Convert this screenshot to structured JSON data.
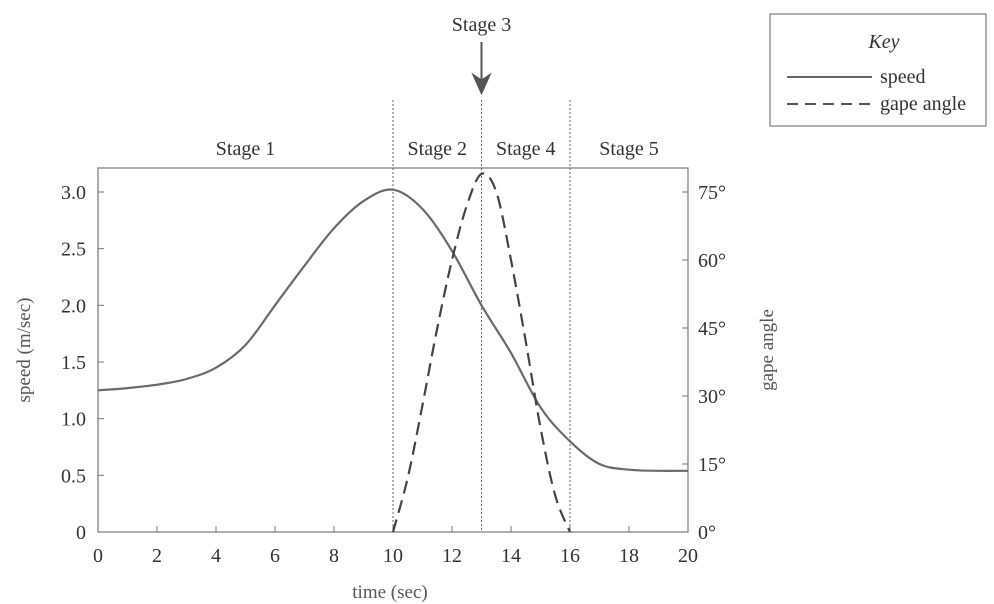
{
  "chart_data": {
    "type": "line",
    "xlabel": "time (sec)",
    "ylabel": "speed (m/sec)",
    "y2label": "gape angle",
    "xlim": [
      0,
      20
    ],
    "ylim": [
      0,
      3.0
    ],
    "y2lim": [
      0,
      75
    ],
    "x_ticks": [
      "0",
      "2",
      "4",
      "6",
      "8",
      "10",
      "12",
      "14",
      "16",
      "18",
      "20"
    ],
    "y_ticks": [
      "0",
      "0.5",
      "1.0",
      "1.5",
      "2.0",
      "2.5",
      "3.0"
    ],
    "y2_ticks": [
      "0°",
      "15°",
      "30°",
      "45°",
      "60°",
      "75°"
    ],
    "x_tick_values": [
      0,
      2,
      4,
      6,
      8,
      10,
      12,
      14,
      16,
      18,
      20
    ],
    "y_tick_values": [
      0,
      0.5,
      1.0,
      1.5,
      2.0,
      2.5,
      3.0
    ],
    "y2_tick_values": [
      0,
      15,
      30,
      45,
      60,
      75
    ],
    "series": [
      {
        "name": "speed",
        "axis": "left",
        "style": "solid",
        "x": [
          0,
          1,
          2,
          3,
          4,
          5,
          6,
          7,
          8,
          9,
          10,
          11,
          12,
          13,
          14,
          15,
          16,
          17,
          18,
          19,
          20
        ],
        "y": [
          1.25,
          1.27,
          1.3,
          1.35,
          1.45,
          1.65,
          2.0,
          2.35,
          2.68,
          2.92,
          3.02,
          2.85,
          2.48,
          2.0,
          1.58,
          1.1,
          0.8,
          0.6,
          0.55,
          0.54,
          0.54
        ]
      },
      {
        "name": "gape angle",
        "axis": "right",
        "style": "dashed",
        "x": [
          10,
          10.5,
          11,
          11.5,
          12,
          12.5,
          13,
          13.5,
          14,
          14.5,
          15,
          15.5,
          16
        ],
        "y": [
          0,
          12,
          28,
          45,
          60,
          72,
          79,
          75,
          60,
          42,
          23,
          8,
          0
        ]
      }
    ],
    "stage_lines_x": [
      10,
      13,
      16
    ],
    "stages": [
      {
        "label": "Stage 1",
        "x": 5
      },
      {
        "label": "Stage 2",
        "x": 11.5
      },
      {
        "label": "Stage 4",
        "x": 14.5
      },
      {
        "label": "Stage 5",
        "x": 18
      }
    ],
    "stage3": {
      "label": "Stage 3",
      "x": 13
    },
    "legend": {
      "title": "Key",
      "placement": "top-right",
      "entries": [
        "speed",
        "gape angle"
      ]
    },
    "grid": false
  }
}
